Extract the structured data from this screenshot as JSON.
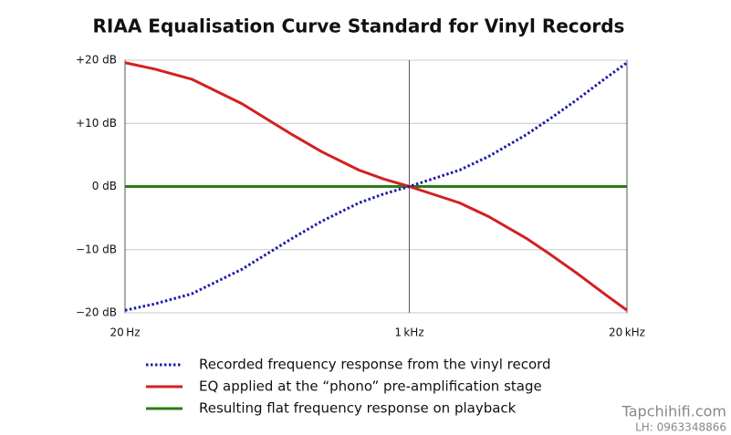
{
  "chart_data": {
    "type": "line",
    "title": "RIAA Equalisation Curve Standard for Vinyl Records",
    "x": [
      20,
      30,
      50,
      100,
      200,
      300,
      500,
      700,
      1000,
      2000,
      3000,
      5000,
      7000,
      10000,
      15000,
      20000
    ],
    "series": [
      {
        "name": "Recorded frequency response from the vinyl record",
        "color": "#1c1ca8",
        "style": "dotted",
        "values": [
          -19.6,
          -18.6,
          -17.0,
          -13.1,
          -8.2,
          -5.5,
          -2.6,
          -1.2,
          0,
          2.6,
          4.8,
          8.2,
          10.8,
          13.7,
          17.2,
          19.6
        ]
      },
      {
        "name": "EQ applied at the “phono” pre-amplification stage",
        "color": "#d42020",
        "style": "solid",
        "values": [
          19.6,
          18.6,
          17.0,
          13.1,
          8.2,
          5.5,
          2.6,
          1.2,
          0,
          -2.6,
          -4.8,
          -8.2,
          -10.8,
          -13.7,
          -17.2,
          -19.6
        ]
      },
      {
        "name": "Resulting flat frequency response on playback",
        "color": "#2a7d16",
        "style": "solid",
        "values": [
          0,
          0,
          0,
          0,
          0,
          0,
          0,
          0,
          0,
          0,
          0,
          0,
          0,
          0,
          0,
          0
        ]
      }
    ],
    "xscale": "log",
    "xlim": [
      20,
      20000
    ],
    "xticks": [
      {
        "value": 20,
        "label": "20 Hz"
      },
      {
        "value": 1000,
        "label": "1 kHz"
      },
      {
        "value": 20000,
        "label": "20 kHz"
      }
    ],
    "ylim": [
      -20,
      20
    ],
    "yticks": [
      {
        "value": -20,
        "label": "−20 dB"
      },
      {
        "value": -10,
        "label": "−10 dB"
      },
      {
        "value": 0,
        "label": "0 dB"
      },
      {
        "value": 10,
        "label": "+10 dB"
      },
      {
        "value": 20,
        "label": "+20 dB"
      }
    ],
    "grid": true,
    "legend": "bottom",
    "annotations": [
      "Tapchihifi.com",
      "LH: 0963348866"
    ]
  }
}
